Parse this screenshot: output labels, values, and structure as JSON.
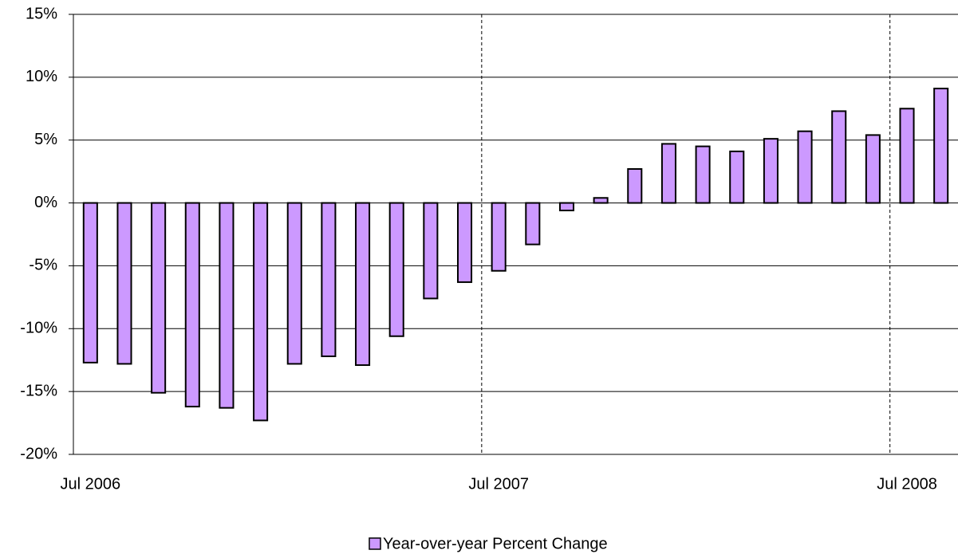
{
  "chart_data": {
    "type": "bar",
    "categories": [
      "Jul 2006",
      null,
      null,
      null,
      null,
      null,
      null,
      null,
      null,
      null,
      null,
      null,
      "Jul 2007",
      null,
      null,
      null,
      null,
      null,
      null,
      null,
      null,
      null,
      null,
      null,
      "Jul 2008",
      null
    ],
    "series": [
      {
        "name": "Year-over-year Percent Change",
        "color": "#cc99ff",
        "values": [
          -12.7,
          -12.8,
          -15.1,
          -16.2,
          -16.3,
          -17.3,
          -12.8,
          -12.2,
          -12.9,
          -10.6,
          -7.6,
          -6.3,
          -5.4,
          -3.3,
          -0.6,
          0.4,
          2.7,
          4.7,
          4.5,
          4.1,
          5.1,
          5.7,
          7.3,
          5.4,
          7.5,
          9.1
        ]
      }
    ],
    "ylim": [
      -20,
      15
    ],
    "yticks": [
      {
        "value": -20,
        "label": "-20%"
      },
      {
        "value": -15,
        "label": "-15%"
      },
      {
        "value": -10,
        "label": "-10%"
      },
      {
        "value": -5,
        "label": "-5%"
      },
      {
        "value": 0,
        "label": "0%"
      },
      {
        "value": 5,
        "label": "5%"
      },
      {
        "value": 10,
        "label": "10%"
      },
      {
        "value": 15,
        "label": "15%"
      }
    ],
    "grid": true,
    "legend": "bottom"
  }
}
